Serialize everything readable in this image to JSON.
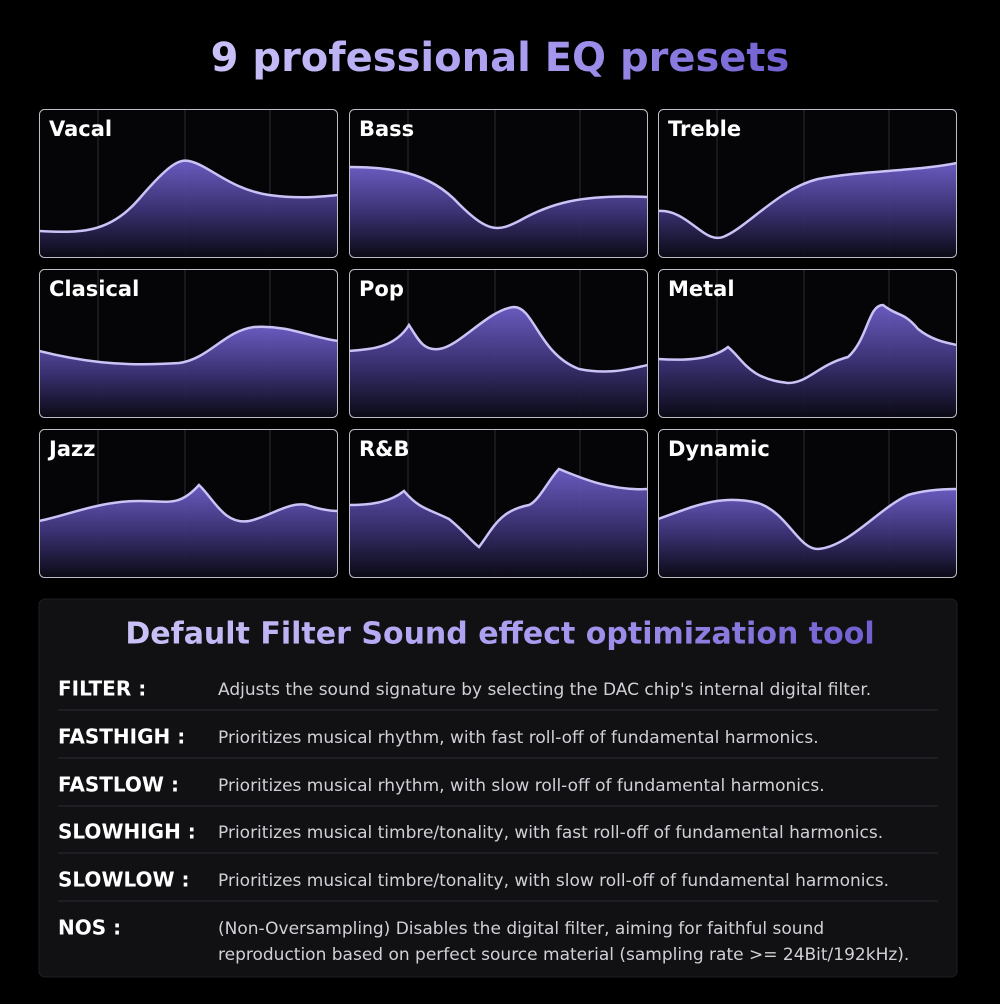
{
  "header": {
    "title": "9 professional EQ presets"
  },
  "presets": [
    "Vacal",
    "Bass",
    "Treble",
    "Clasical",
    "Pop",
    "Metal",
    "Jazz",
    "R&B",
    "Dynamic"
  ],
  "filters": {
    "title": "Default Filter Sound effect optimization tool",
    "rows": [
      {
        "term": "FILTER :",
        "lines": [
          "Adjusts the sound signature by selecting the DAC chip's internal digital filter."
        ]
      },
      {
        "term": "FASTHIGH :",
        "lines": [
          "Prioritizes musical rhythm, with fast roll-off of fundamental harmonics."
        ]
      },
      {
        "term": "FASTLOW :",
        "lines": [
          "Prioritizes musical rhythm, with slow roll-off of fundamental harmonics."
        ]
      },
      {
        "term": "SLOWHIGH :",
        "lines": [
          "Prioritizes musical timbre/tonality, with fast roll-off of fundamental harmonics."
        ]
      },
      {
        "term": "SLOWLOW :",
        "lines": [
          "Prioritizes musical timbre/tonality, with slow roll-off of fundamental harmonics."
        ]
      },
      {
        "term": "NOS :",
        "lines": [
          "(Non-Oversampling) Disables the digital filter, aiming for faithful sound",
          "reproduction based on perfect source material (sampling rate >= 24Bit/192kHz)."
        ]
      }
    ]
  }
}
